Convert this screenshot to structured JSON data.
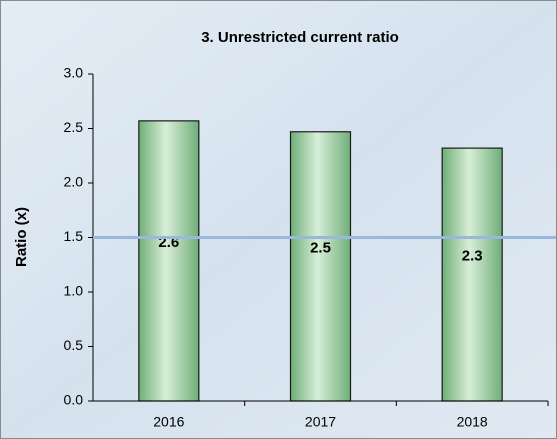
{
  "chart_data": {
    "type": "bar",
    "title": "3. Unrestricted current ratio",
    "y_label": "Ratio (x)",
    "categories": [
      "2016",
      "2017",
      "2018"
    ],
    "values": [
      2.57,
      2.47,
      2.32
    ],
    "value_labels": [
      "2.6",
      "2.5",
      "2.3"
    ],
    "color": "#a9d3a9",
    "reference_line": 1.5,
    "reference_color": "#9ab8dc",
    "ylim": [
      0,
      3
    ],
    "yticks": [
      {
        "value": 0,
        "label": "0.0"
      },
      0.5,
      {
        "value": 1,
        "label": "1.0"
      },
      1.5,
      {
        "value": 2,
        "label": "2.0"
      },
      2.5,
      {
        "value": 3,
        "label": "3.0"
      }
    ],
    "grid": false
  }
}
